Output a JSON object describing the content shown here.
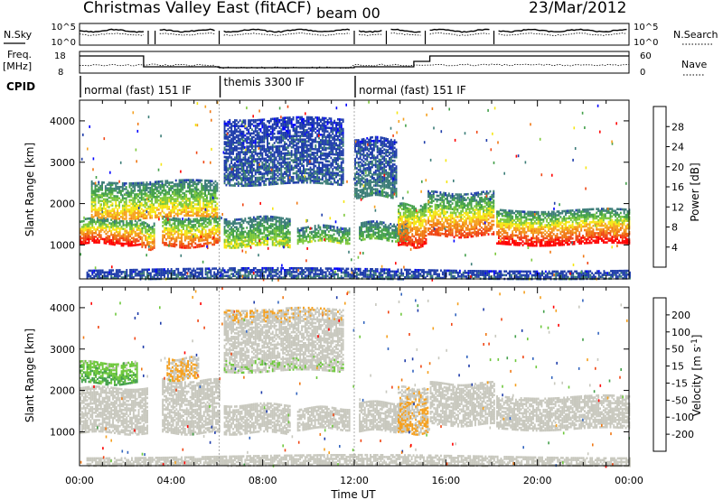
{
  "header": {
    "title": "Christmas Valley East (fitACF)",
    "beam": "beam 00",
    "date": "23/Mar/2012"
  },
  "noise_panel": {
    "left_label": "N.Sky",
    "right_label": "N.Search",
    "left_ticks": [
      "10^5",
      "10^0"
    ],
    "right_ticks": [
      "10^5",
      "10^0"
    ]
  },
  "freq_panel": {
    "left_label_1": "Freq.",
    "left_label_2": "[MHz]",
    "right_label": "Nave",
    "left_ticks": [
      "18",
      "8"
    ],
    "right_ticks": [
      "60",
      "0"
    ]
  },
  "cpid": {
    "label": "CPID",
    "segments": [
      {
        "start": 0,
        "name": "normal (fast) 151 IF"
      },
      {
        "start": 6.1,
        "name": "themis 3300 IF"
      },
      {
        "start": 12.0,
        "name": "normal (fast) 151 IF"
      }
    ]
  },
  "colors": {
    "power": [
      "#0000ff",
      "#1e3caa",
      "#3c7d78",
      "#43a04a",
      "#7dc83c",
      "#f5e614",
      "#f5a01e",
      "#f07814",
      "#f04614",
      "#ff0000"
    ],
    "velocity": [
      "#1e3caa",
      "#3264be",
      "#43a04a",
      "#6ec83c",
      "#c8c8be",
      "#c8c8be",
      "#f5a01e",
      "#f07814",
      "#f04614",
      "#ff0000"
    ]
  },
  "chart_data": [
    {
      "type": "heatmap",
      "parameter": "power",
      "xlabel": "",
      "ylabel": "Slant Range [km]",
      "xlim": [
        0,
        24
      ],
      "ylim": [
        180,
        4500
      ],
      "y_ticks": [
        1000,
        2000,
        3000,
        4000
      ],
      "colorbar": {
        "label": "Power [dB]",
        "ticks": [
          "28",
          "24",
          "20",
          "16",
          "12",
          "8",
          "4"
        ],
        "range": [
          0,
          30
        ]
      },
      "features": [
        {
          "x0": 0.0,
          "x1": 2.7,
          "r0": 1050,
          "r1": 1650,
          "v0": 30,
          "v1": 8
        },
        {
          "x0": 2.7,
          "x1": 3.3,
          "r0": 950,
          "r1": 1550,
          "v0": 25,
          "v1": 8
        },
        {
          "x0": 3.6,
          "x1": 6.1,
          "r0": 1000,
          "r1": 1700,
          "v0": 26,
          "v1": 8
        },
        {
          "x0": 0.5,
          "x1": 6.0,
          "r0": 1700,
          "r1": 2600,
          "v0": 20,
          "v1": 6
        },
        {
          "x0": 6.3,
          "x1": 9.2,
          "r0": 1000,
          "r1": 1700,
          "v0": 16,
          "v1": 6
        },
        {
          "x0": 9.5,
          "x1": 11.8,
          "r0": 1100,
          "r1": 1500,
          "v0": 14,
          "v1": 6
        },
        {
          "x0": 12.2,
          "x1": 14.3,
          "r0": 1150,
          "r1": 1600,
          "v0": 12,
          "v1": 6
        },
        {
          "x0": 13.9,
          "x1": 15.1,
          "r0": 1000,
          "r1": 2000,
          "v0": 28,
          "v1": 10
        },
        {
          "x0": 15.2,
          "x1": 18.1,
          "r0": 1250,
          "r1": 2300,
          "v0": 26,
          "v1": 6
        },
        {
          "x0": 18.2,
          "x1": 24.0,
          "r0": 1050,
          "r1": 1900,
          "v0": 30,
          "v1": 6
        },
        {
          "x0": 6.3,
          "x1": 11.5,
          "r0": 2500,
          "r1": 4100,
          "v0": 6,
          "v1": 4
        },
        {
          "x0": 12.0,
          "x1": 13.8,
          "r0": 2200,
          "r1": 3600,
          "v0": 8,
          "v1": 4
        },
        {
          "x0": 0.3,
          "x1": 24.0,
          "r0": 200,
          "r1": 450,
          "v0": 6,
          "v1": 4
        }
      ]
    },
    {
      "type": "heatmap",
      "parameter": "velocity",
      "xlabel": "Time UT",
      "ylabel": "Slant Range [km]",
      "xlim": [
        0,
        24
      ],
      "ylim": [
        180,
        4500
      ],
      "x_ticks": [
        "00:00",
        "04:00",
        "08:00",
        "12:00",
        "16:00",
        "20:00",
        "00:00"
      ],
      "y_ticks": [
        1000,
        2000,
        3000,
        4000
      ],
      "colorbar": {
        "label": "Velocity [m s^-1]",
        "ticks": [
          "200",
          "100",
          "50",
          "15",
          "-15",
          "-50",
          "-100",
          "-200"
        ],
        "range": [
          -250,
          250
        ]
      },
      "features": [
        {
          "x0": 0.0,
          "x1": 3.0,
          "r0": 1000,
          "r1": 2100,
          "v0": 0,
          "v1": 0
        },
        {
          "x0": 0.0,
          "x1": 2.5,
          "r0": 2200,
          "r1": 2700,
          "v0": -120,
          "v1": -60
        },
        {
          "x0": 3.6,
          "x1": 6.1,
          "r0": 1000,
          "r1": 2300,
          "v0": 0,
          "v1": 0
        },
        {
          "x0": 3.8,
          "x1": 5.2,
          "r0": 2300,
          "r1": 2800,
          "v0": 60,
          "v1": 40
        },
        {
          "x0": 6.3,
          "x1": 9.2,
          "r0": 1000,
          "r1": 1700,
          "v0": 0,
          "v1": -20
        },
        {
          "x0": 9.5,
          "x1": 11.8,
          "r0": 1100,
          "r1": 1600,
          "v0": 0,
          "v1": 0
        },
        {
          "x0": 12.2,
          "x1": 14.4,
          "r0": 1050,
          "r1": 1750,
          "v0": 20,
          "v1": 0
        },
        {
          "x0": 13.9,
          "x1": 15.2,
          "r0": 1000,
          "r1": 2100,
          "v0": 60,
          "v1": 30
        },
        {
          "x0": 15.3,
          "x1": 18.1,
          "r0": 1200,
          "r1": 2200,
          "v0": 0,
          "v1": 0
        },
        {
          "x0": 18.2,
          "x1": 24.0,
          "r0": 1100,
          "r1": 1900,
          "v0": 0,
          "v1": 0
        },
        {
          "x0": 6.3,
          "x1": 11.5,
          "r0": 2500,
          "r1": 4000,
          "v0": -40,
          "v1": 40
        },
        {
          "x0": 0.3,
          "x1": 24.0,
          "r0": 200,
          "r1": 450,
          "v0": -20,
          "v1": 20
        }
      ]
    }
  ]
}
